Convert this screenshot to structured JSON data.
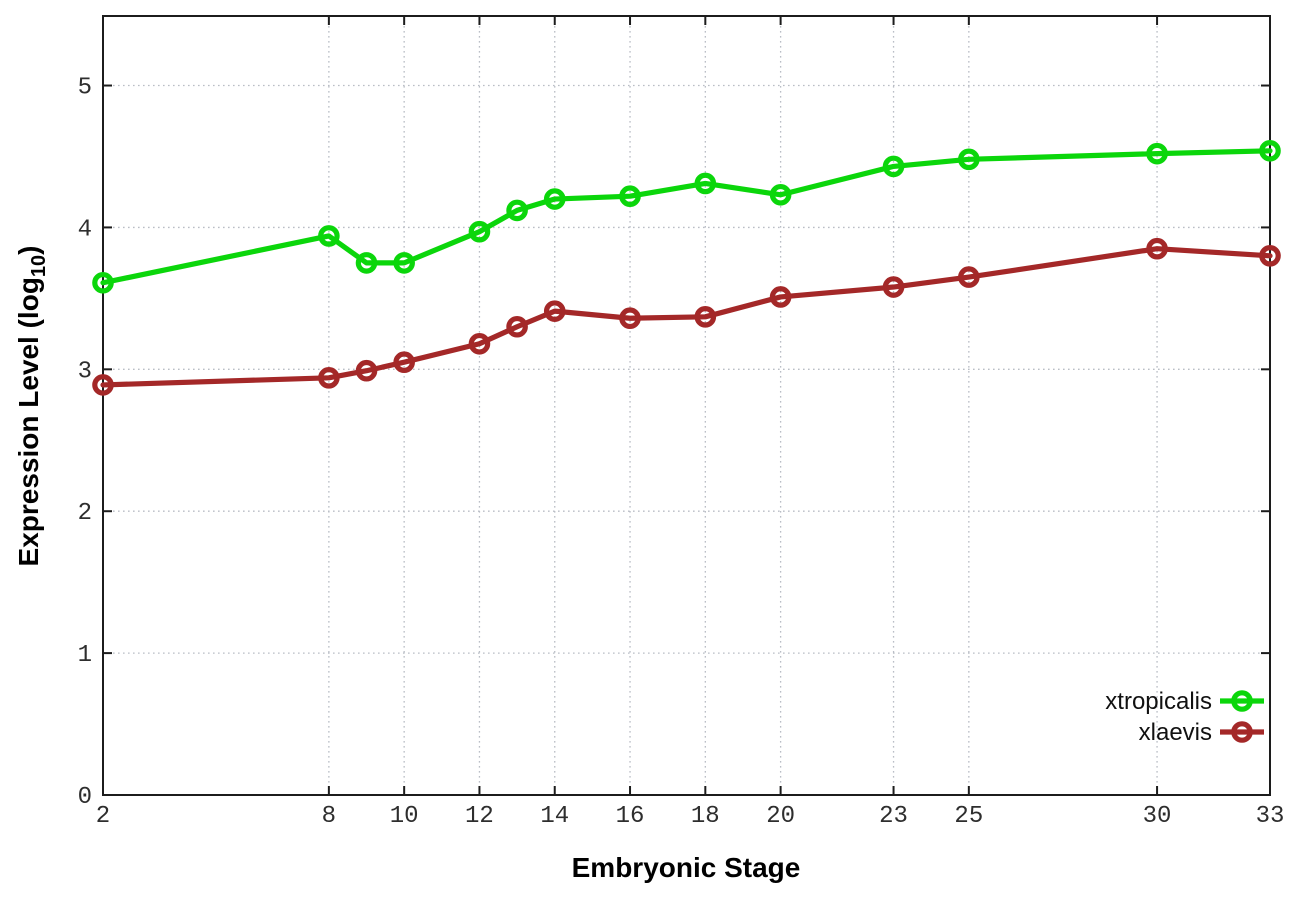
{
  "chart_data": {
    "type": "line",
    "title": "",
    "xlabel": "Embryonic Stage",
    "ylabel": "Expression Level (log10)",
    "ylabel_parts": {
      "main": "Expression Level (log",
      "sub": "10",
      "close": ")"
    },
    "x": [
      2,
      8,
      9,
      10,
      12,
      13,
      14,
      16,
      18,
      20,
      23,
      25,
      30,
      33
    ],
    "series": [
      {
        "name": "xtropicalis",
        "color": "#0bd60b",
        "values": [
          3.61,
          3.94,
          3.75,
          3.75,
          3.97,
          4.12,
          4.2,
          4.22,
          4.31,
          4.23,
          4.43,
          4.48,
          4.52,
          4.54
        ]
      },
      {
        "name": "xlaevis",
        "color": "#a42828",
        "values": [
          2.89,
          2.94,
          2.99,
          3.05,
          3.18,
          3.3,
          3.41,
          3.36,
          3.37,
          3.51,
          3.58,
          3.65,
          3.85,
          3.8
        ]
      }
    ],
    "x_ticks": [
      2,
      8,
      10,
      12,
      14,
      16,
      18,
      20,
      23,
      25,
      30,
      33
    ],
    "y_ticks": [
      0,
      1,
      2,
      3,
      4,
      5
    ],
    "xlim": [
      2,
      33
    ],
    "ylim": [
      0,
      5.49
    ],
    "grid": true,
    "grid_style": "dotted",
    "marker": "open-circle",
    "legend_position": "bottom-right",
    "colors": {
      "background": "#ffffff",
      "border": "#1c1c1c",
      "grid": "#b9bdc5",
      "tick_label": "#2e2e2e",
      "axis_title": "#000000"
    }
  }
}
